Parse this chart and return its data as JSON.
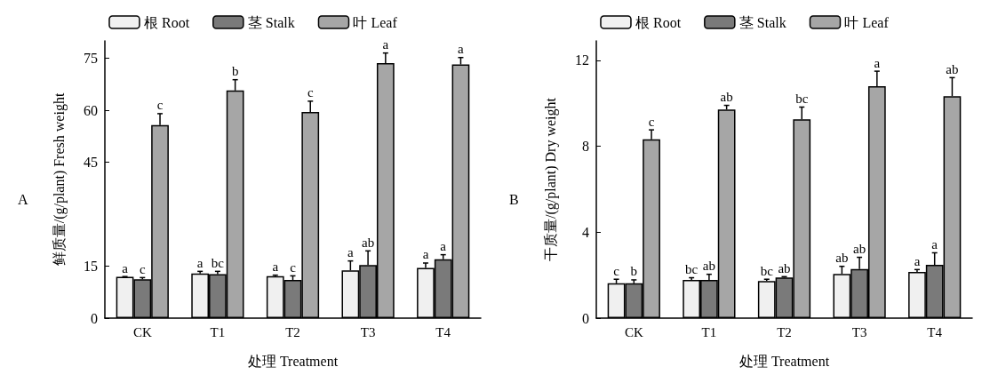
{
  "chart_data": [
    {
      "type": "bar",
      "ylabel": "鲜质量/(g/plant) Fresh weight",
      "xlabel": "处理 Treatment",
      "annotations": [
        "A"
      ],
      "categories": [
        "CK",
        "T1",
        "T2",
        "T3",
        "T4"
      ],
      "ylim": [
        0,
        80
      ],
      "yticks": [
        0,
        15,
        45,
        60,
        75
      ],
      "legend": "top",
      "grid": false,
      "series": [
        {
          "name": "根 Root",
          "color": "#f0f0f0",
          "values": [
            11.9,
            12.9,
            12.1,
            13.8,
            14.5
          ],
          "errors": [
            [
              11.9,
              12.0
            ],
            [
              12.9,
              13.5
            ],
            [
              12.1,
              12.4
            ],
            [
              13.8,
              16.5
            ],
            [
              14.5,
              15.9
            ]
          ],
          "value_labels": [
            "a",
            "a",
            "a",
            "a",
            "a"
          ]
        },
        {
          "name": "茎 Stalk",
          "color": "#7a7a7a",
          "values": [
            11.2,
            12.7,
            11.0,
            15.3,
            17.0
          ],
          "errors": [
            [
              11.2,
              11.7
            ],
            [
              12.7,
              13.5
            ],
            [
              11.0,
              12.2
            ],
            [
              15.3,
              19.4
            ],
            [
              17.0,
              18.3
            ]
          ],
          "value_labels": [
            "c",
            "bc",
            "c",
            "ab",
            "a"
          ]
        },
        {
          "name": "叶 Leaf",
          "color": "#a6a6a6",
          "values": [
            55.7,
            65.7,
            59.5,
            73.6,
            73.2
          ],
          "errors": [
            [
              55.7,
              59.0
            ],
            [
              65.7,
              68.8
            ],
            [
              59.5,
              62.6
            ],
            [
              73.6,
              76.5
            ],
            [
              73.2,
              75.2
            ]
          ],
          "value_labels": [
            "c",
            "b",
            "c",
            "a",
            "a"
          ]
        }
      ]
    },
    {
      "type": "bar",
      "ylabel": "干质量/(g/plant) Dry weight",
      "xlabel": "处理 Treatment",
      "annotations": [
        "B"
      ],
      "categories": [
        "CK",
        "T1",
        "T2",
        "T3",
        "T4"
      ],
      "ylim": [
        0,
        12.9
      ],
      "yticks": [
        0,
        4,
        8,
        12
      ],
      "legend": "top",
      "grid": false,
      "series": [
        {
          "name": "根 Root",
          "color": "#f0f0f0",
          "values": [
            1.62,
            1.78,
            1.73,
            2.06,
            2.15
          ],
          "errors": [
            [
              1.62,
              1.81
            ],
            [
              1.78,
              1.88
            ],
            [
              1.73,
              1.81
            ],
            [
              2.06,
              2.41
            ],
            [
              2.15,
              2.26
            ]
          ],
          "value_labels": [
            "c",
            "bc",
            "bc",
            "ab",
            "a"
          ]
        },
        {
          "name": "茎 Stalk",
          "color": "#7a7a7a",
          "values": [
            1.62,
            1.78,
            1.89,
            2.28,
            2.48
          ],
          "errors": [
            [
              1.62,
              1.78
            ],
            [
              1.78,
              2.04
            ],
            [
              1.89,
              1.93
            ],
            [
              2.28,
              2.83
            ],
            [
              2.48,
              3.04
            ]
          ],
          "value_labels": [
            "b",
            "ab",
            "ab",
            "ab",
            "a"
          ]
        },
        {
          "name": "叶 Leaf",
          "color": "#a6a6a6",
          "values": [
            8.32,
            9.71,
            9.25,
            10.79,
            10.33
          ],
          "errors": [
            [
              8.32,
              8.76
            ],
            [
              9.71,
              9.9
            ],
            [
              9.25,
              9.82
            ],
            [
              10.79,
              11.49
            ],
            [
              10.33,
              11.19
            ]
          ],
          "value_labels": [
            "c",
            "ab",
            "bc",
            "a",
            "ab"
          ]
        }
      ]
    }
  ]
}
